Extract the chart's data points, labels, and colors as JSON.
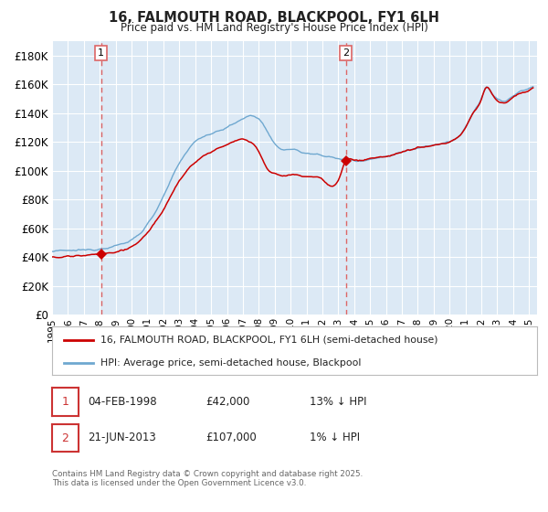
{
  "title": "16, FALMOUTH ROAD, BLACKPOOL, FY1 6LH",
  "subtitle": "Price paid vs. HM Land Registry's House Price Index (HPI)",
  "legend_line1": "16, FALMOUTH ROAD, BLACKPOOL, FY1 6LH (semi-detached house)",
  "legend_line2": "HPI: Average price, semi-detached house, Blackpool",
  "sale1_date": "04-FEB-1998",
  "sale1_price": "£42,000",
  "sale1_hpi": "13% ↓ HPI",
  "sale1_year": 1998.09,
  "sale1_value": 42000,
  "sale2_date": "21-JUN-2013",
  "sale2_price": "£107,000",
  "sale2_hpi": "1% ↓ HPI",
  "sale2_year": 2013.47,
  "sale2_value": 107000,
  "footer": "Contains HM Land Registry data © Crown copyright and database right 2025.\nThis data is licensed under the Open Government Licence v3.0.",
  "ylim": [
    0,
    190000
  ],
  "yticks": [
    0,
    20000,
    40000,
    60000,
    80000,
    100000,
    120000,
    140000,
    160000,
    180000
  ],
  "xmin": 1995.0,
  "xmax": 2025.5,
  "bg_color": "#dce9f5",
  "grid_color": "#ffffff",
  "red_line_color": "#cc0000",
  "blue_line_color": "#6fa8d0",
  "dashed_color": "#dd6666"
}
